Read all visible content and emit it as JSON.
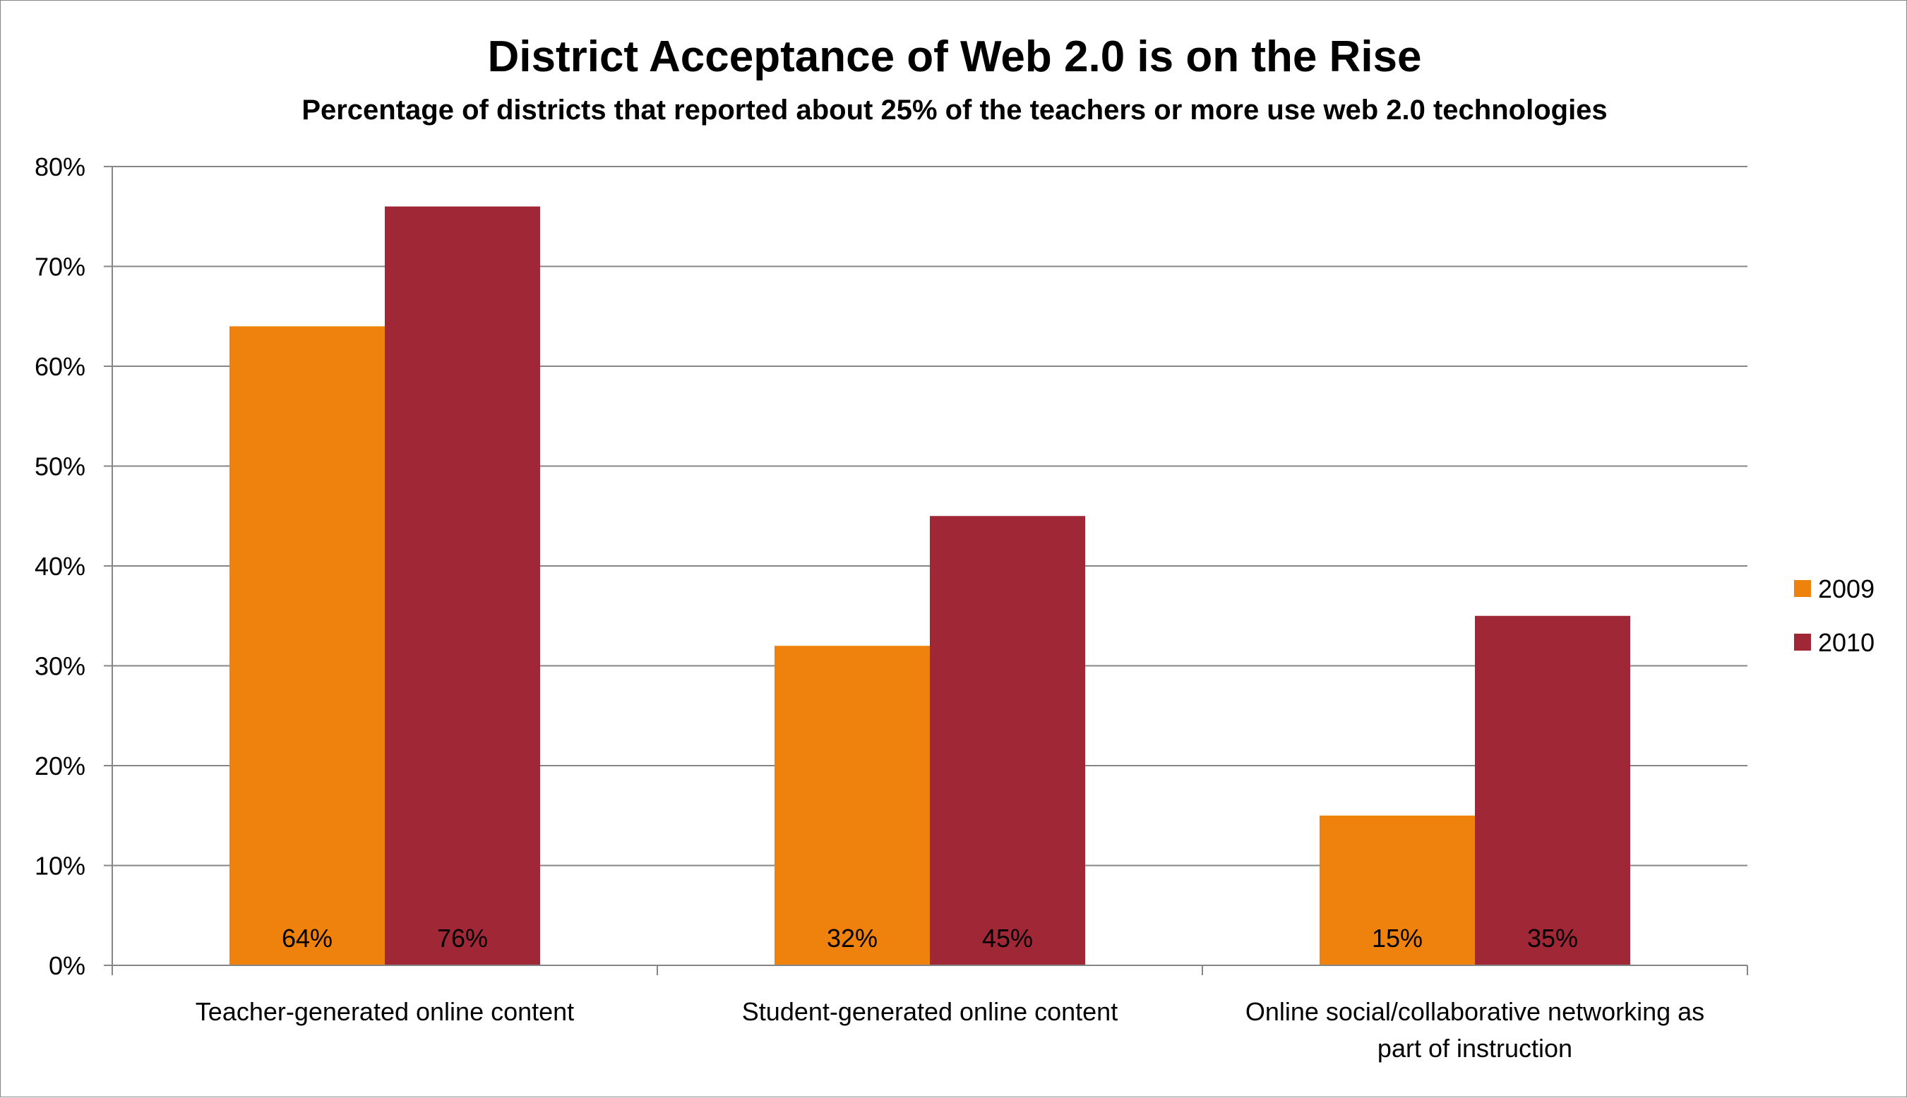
{
  "chart_data": {
    "type": "bar",
    "title": "District Acceptance of Web 2.0 is on the Rise",
    "subtitle": "Percentage of districts that reported about 25% of the teachers or more use web 2.0 technologies",
    "xlabel": "",
    "ylabel": "",
    "ylim": [
      0,
      80
    ],
    "ytick_step": 10,
    "ytick_suffix": "%",
    "grid": true,
    "legend_position": "right",
    "categories": [
      [
        "Teacher-generated online content"
      ],
      [
        "Student-generated online content"
      ],
      [
        "Online social/collaborative networking as",
        "part of instruction"
      ]
    ],
    "series": [
      {
        "name": "2009",
        "color": "#ef820d",
        "values": [
          64,
          32,
          15
        ],
        "labels": [
          "64%",
          "32%",
          "15%"
        ]
      },
      {
        "name": "2010",
        "color": "#a02736",
        "values": [
          76,
          45,
          35
        ],
        "labels": [
          "76%",
          "45%",
          "35%"
        ]
      }
    ]
  }
}
